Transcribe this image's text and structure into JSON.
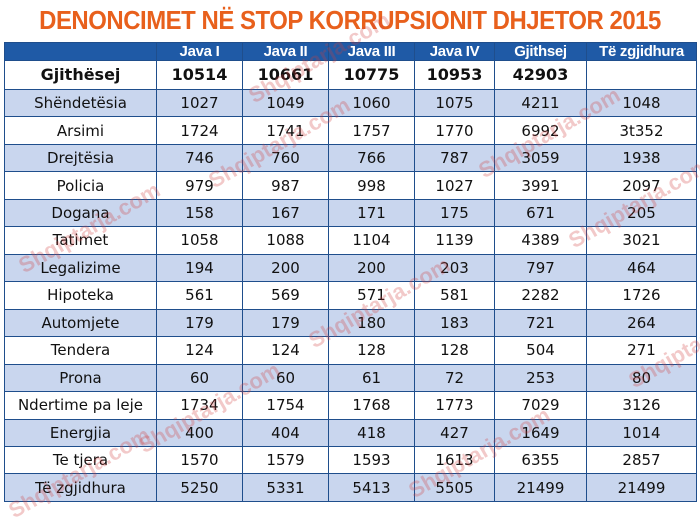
{
  "title": "DENONCIMET NË STOP KORRUPSIONIT DHJETOR 2015",
  "columns": [
    "",
    "Java I",
    "Java II",
    "Java III",
    "Java IV",
    "Gjithsej",
    "Të zgjidhura"
  ],
  "total_row": {
    "label": "Gjithësej",
    "values": [
      "10514",
      "10661",
      "10775",
      "10953",
      "42903",
      ""
    ]
  },
  "rows": [
    {
      "label": "Shëndetësia",
      "values": [
        "1027",
        "1049",
        "1060",
        "1075",
        "4211",
        "1048"
      ]
    },
    {
      "label": "Arsimi",
      "values": [
        "1724",
        "1741",
        "1757",
        "1770",
        "6992",
        "3t352"
      ]
    },
    {
      "label": "Drejtësia",
      "values": [
        "746",
        "760",
        "766",
        "787",
        "3059",
        "1938"
      ]
    },
    {
      "label": "Policia",
      "values": [
        "979",
        "987",
        "998",
        "1027",
        "3991",
        "2097"
      ]
    },
    {
      "label": "Dogana",
      "values": [
        "158",
        "167",
        "171",
        "175",
        "671",
        "205"
      ]
    },
    {
      "label": "Tatimet",
      "values": [
        "1058",
        "1088",
        "1104",
        "1139",
        "4389",
        "3021"
      ]
    },
    {
      "label": "Legalizime",
      "values": [
        "194",
        "200",
        "200",
        "203",
        "797",
        "464"
      ]
    },
    {
      "label": "Hipoteka",
      "values": [
        "561",
        "569",
        "571",
        "581",
        "2282",
        "1726"
      ]
    },
    {
      "label": "Automjete",
      "values": [
        "179",
        "179",
        "180",
        "183",
        "721",
        "264"
      ]
    },
    {
      "label": "Tendera",
      "values": [
        "124",
        "124",
        "128",
        "128",
        "504",
        "271"
      ]
    },
    {
      "label": "Prona",
      "values": [
        "60",
        "60",
        "61",
        "72",
        "253",
        "80"
      ]
    },
    {
      "label": "Ndertime pa leje",
      "values": [
        "1734",
        "1754",
        "1768",
        "1773",
        "7029",
        "3126"
      ]
    },
    {
      "label": "Energjia",
      "values": [
        "400",
        "404",
        "418",
        "427",
        "1649",
        "1014"
      ]
    },
    {
      "label": "Te tjera",
      "values": [
        "1570",
        "1579",
        "1593",
        "1613",
        "6355",
        "2857"
      ]
    }
  ],
  "final_row": {
    "label": "Të zgjidhura",
    "values": [
      "5250",
      "5331",
      "5413",
      "5505",
      "21499",
      "21499"
    ]
  },
  "watermark": "Shqiptarja.com",
  "colors": {
    "title": "#e8601c",
    "header_bg": "#1f5aa6",
    "alt_row_bg": "#c9d6ee",
    "border": "#1f4e8c"
  }
}
